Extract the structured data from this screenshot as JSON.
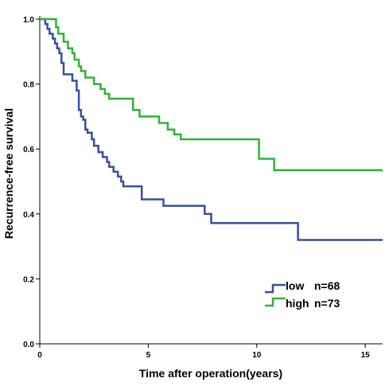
{
  "chart_data": {
    "type": "line",
    "step": true,
    "xlabel": "Time after operation(years)",
    "ylabel": "Recurrence-free survival",
    "xlim": [
      0,
      15.8
    ],
    "ylim": [
      0,
      1.0
    ],
    "xticks": [
      0,
      5,
      10,
      15
    ],
    "yticks": [
      0.0,
      0.2,
      0.4,
      0.6,
      0.8,
      1.0
    ],
    "ytick_labels": [
      "0.0",
      "0.2",
      "0.4",
      "0.6",
      "0.8",
      "1.0"
    ],
    "grid": false,
    "legend_position": "bottom-right",
    "series": [
      {
        "name": "low",
        "n_label": "n=68",
        "color": "#3a4f9a",
        "x": [
          0,
          0.25,
          0.35,
          0.45,
          0.6,
          0.7,
          0.8,
          0.9,
          1.0,
          1.1,
          1.5,
          1.7,
          1.8,
          1.9,
          2.0,
          2.1,
          2.2,
          2.4,
          2.5,
          2.7,
          2.9,
          3.1,
          3.2,
          3.4,
          3.6,
          3.75,
          3.85,
          4.7,
          5.7,
          7.6,
          7.9,
          11.9,
          15.8
        ],
        "y": [
          1.0,
          0.985,
          0.97,
          0.955,
          0.94,
          0.925,
          0.91,
          0.895,
          0.865,
          0.83,
          0.81,
          0.78,
          0.72,
          0.7,
          0.69,
          0.66,
          0.65,
          0.63,
          0.61,
          0.59,
          0.575,
          0.56,
          0.545,
          0.53,
          0.515,
          0.5,
          0.485,
          0.445,
          0.425,
          0.4,
          0.372,
          0.32,
          0.32
        ]
      },
      {
        "name": "high",
        "n_label": "n=73",
        "color": "#2eb33a",
        "x": [
          0,
          0.75,
          0.85,
          1.1,
          1.3,
          1.5,
          1.6,
          1.8,
          1.9,
          2.1,
          2.5,
          2.8,
          3.0,
          3.2,
          3.4,
          4.3,
          4.6,
          5.5,
          5.9,
          6.2,
          6.5,
          10.1,
          10.8,
          15.8
        ],
        "y": [
          1.0,
          0.975,
          0.955,
          0.93,
          0.91,
          0.895,
          0.875,
          0.855,
          0.84,
          0.82,
          0.8,
          0.785,
          0.77,
          0.755,
          0.755,
          0.72,
          0.7,
          0.68,
          0.66,
          0.645,
          0.63,
          0.57,
          0.535,
          0.535
        ]
      }
    ]
  }
}
